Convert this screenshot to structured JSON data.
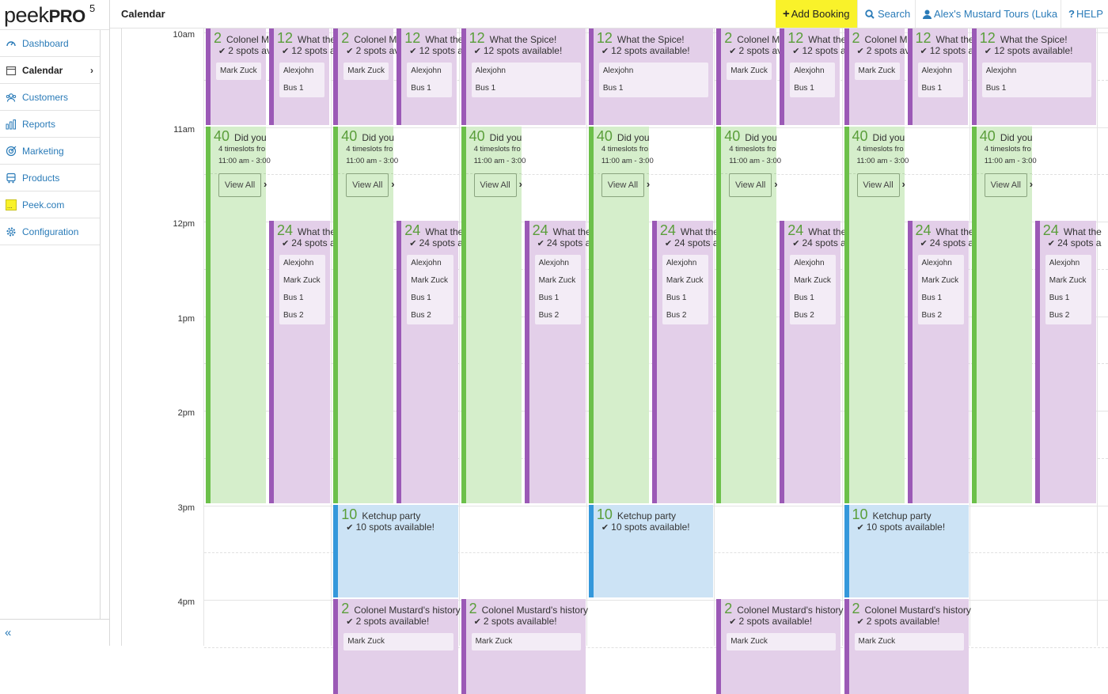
{
  "logo": {
    "word": "peek",
    "pro": "PRO",
    "version": "5"
  },
  "sidebar": {
    "items": [
      {
        "label": "Dashboard",
        "icon": "dashboard-icon",
        "active": false
      },
      {
        "label": "Calendar",
        "icon": "calendar-icon",
        "active": true
      },
      {
        "label": "Customers",
        "icon": "customers-icon",
        "active": false
      },
      {
        "label": "Reports",
        "icon": "reports-icon",
        "active": false
      },
      {
        "label": "Marketing",
        "icon": "marketing-icon",
        "active": false
      },
      {
        "label": "Products",
        "icon": "products-icon",
        "active": false
      },
      {
        "label": "Peek.com",
        "icon": "peek-com-icon",
        "active": false
      },
      {
        "label": "Configuration",
        "icon": "configuration-icon",
        "active": false
      }
    ],
    "collapse": "«"
  },
  "header": {
    "title": "Calendar",
    "add_booking": "Add Booking",
    "search": "Search",
    "account": "Alex's Mustard Tours (Luka",
    "help": "HELP"
  },
  "colors": {
    "accent_yellow": "#f9f22a",
    "link_blue": "#2a7bb8",
    "purple": "#9b59b6",
    "green": "#6cc04a",
    "blue": "#3498db"
  },
  "time_labels": [
    "10am",
    "11am",
    "12pm",
    "1pm",
    "2pm",
    "3pm",
    "4pm"
  ],
  "events": {
    "colonel_short": {
      "num": "2",
      "title": "Colonel Mu",
      "spots": "2 spots av",
      "guests": [
        "Mark Zuck"
      ]
    },
    "spice_short": {
      "num": "12",
      "title": "What the",
      "spots": "12 spots a",
      "guests": [
        "Alexjohn",
        "Bus 1"
      ]
    },
    "spice_full": {
      "num": "12",
      "title": "What the Spice!",
      "spots": "12 spots available!",
      "guests": [
        "Alexjohn",
        "Bus 1"
      ]
    },
    "didyou": {
      "num": "40",
      "title": "Did you",
      "line1": "4 timeslots fro",
      "line2": "11:00 am - 3:00",
      "view_all": "View All"
    },
    "what24": {
      "num": "24",
      "title": "What the",
      "spots": "24 spots a",
      "guests": [
        "Alexjohn",
        "Mark Zuck",
        "Bus 1",
        "Bus 2"
      ]
    },
    "ketchup": {
      "num": "10",
      "title": "Ketchup party",
      "spots": "10 spots available!"
    },
    "colonel_full": {
      "num": "2",
      "title": "Colonel Mustard's history",
      "spots": "2 spots available!",
      "guests": [
        "Mark Zuck"
      ]
    }
  }
}
